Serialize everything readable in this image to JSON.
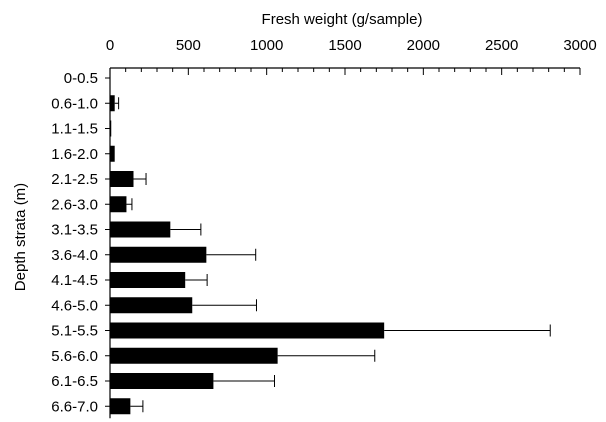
{
  "chart_data": {
    "type": "bar",
    "orientation": "horizontal",
    "title": "",
    "xlabel": "Fresh weight (g/sample)",
    "ylabel": "Depth strata (m)",
    "x_axis_position": "top",
    "xlim": [
      0,
      3000
    ],
    "xticks": [
      0,
      500,
      1000,
      1500,
      2000,
      2500,
      3000
    ],
    "xminor_step": 100,
    "grid": false,
    "legend": "none",
    "categories": [
      "0-0.5",
      "0.6-1.0",
      "1.1-1.5",
      "1.6-2.0",
      "2.1-2.5",
      "2.6-3.0",
      "3.1-3.5",
      "3.6-4.0",
      "4.1-4.5",
      "4.6-5.0",
      "5.1-5.5",
      "5.6-6.0",
      "6.1-6.5",
      "6.6-7.0"
    ],
    "series": [
      {
        "values": [
          0,
          30,
          8,
          30,
          150,
          105,
          385,
          615,
          480,
          525,
          1750,
          1070,
          660,
          130
        ],
        "errors": [
          0,
          25,
          0,
          0,
          80,
          35,
          195,
          315,
          140,
          410,
          1060,
          620,
          390,
          80
        ]
      }
    ],
    "colors": {
      "bar": "#000000",
      "axis": "#000000",
      "background": "#ffffff"
    }
  }
}
